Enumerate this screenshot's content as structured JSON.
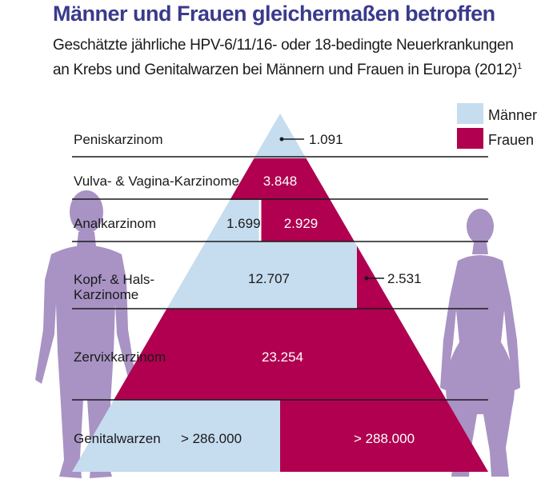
{
  "title": "Männer und Frauen gleichermaßen betroffen",
  "subtitle_line1": "Geschätzte jährliche HPV-6/11/16- oder 18-bedingte Neuerkrankungen",
  "subtitle_line2": "an Krebs und Genitalwarzen bei Männern und Frauen in Europa (2012)",
  "footnote_marker": "1",
  "colors": {
    "maenner": "#c6dcef",
    "frauen": "#b0004f",
    "figure": "#a893c4",
    "text": "#1a1a1a",
    "title": "#3a3a8c"
  },
  "chart_data": {
    "type": "bar",
    "subtype": "stacked horizontal pyramid",
    "legend_placement": "top-right",
    "series": [
      {
        "name": "Männer",
        "color": "#c6dcef"
      },
      {
        "name": "Frauen",
        "color": "#b0004f"
      }
    ],
    "categories": [
      {
        "label": "Peniskarzinom",
        "values": {
          "maenner": "1.091"
        }
      },
      {
        "label": "Vulva- & Vagina-Karzinome",
        "values": {
          "frauen": "3.848"
        }
      },
      {
        "label": "Analkarzinom",
        "values": {
          "maenner": "1.699",
          "frauen": "2.929"
        }
      },
      {
        "label": "Kopf- & Hals-\nKarzinome",
        "values": {
          "maenner": "12.707",
          "frauen": "2.531"
        }
      },
      {
        "label": "Zervixkarzinom",
        "values": {
          "frauen": "23.254"
        }
      },
      {
        "label": "Genitalwarzen",
        "values": {
          "maenner": "> 286.000",
          "frauen": "> 288.000"
        }
      }
    ]
  }
}
